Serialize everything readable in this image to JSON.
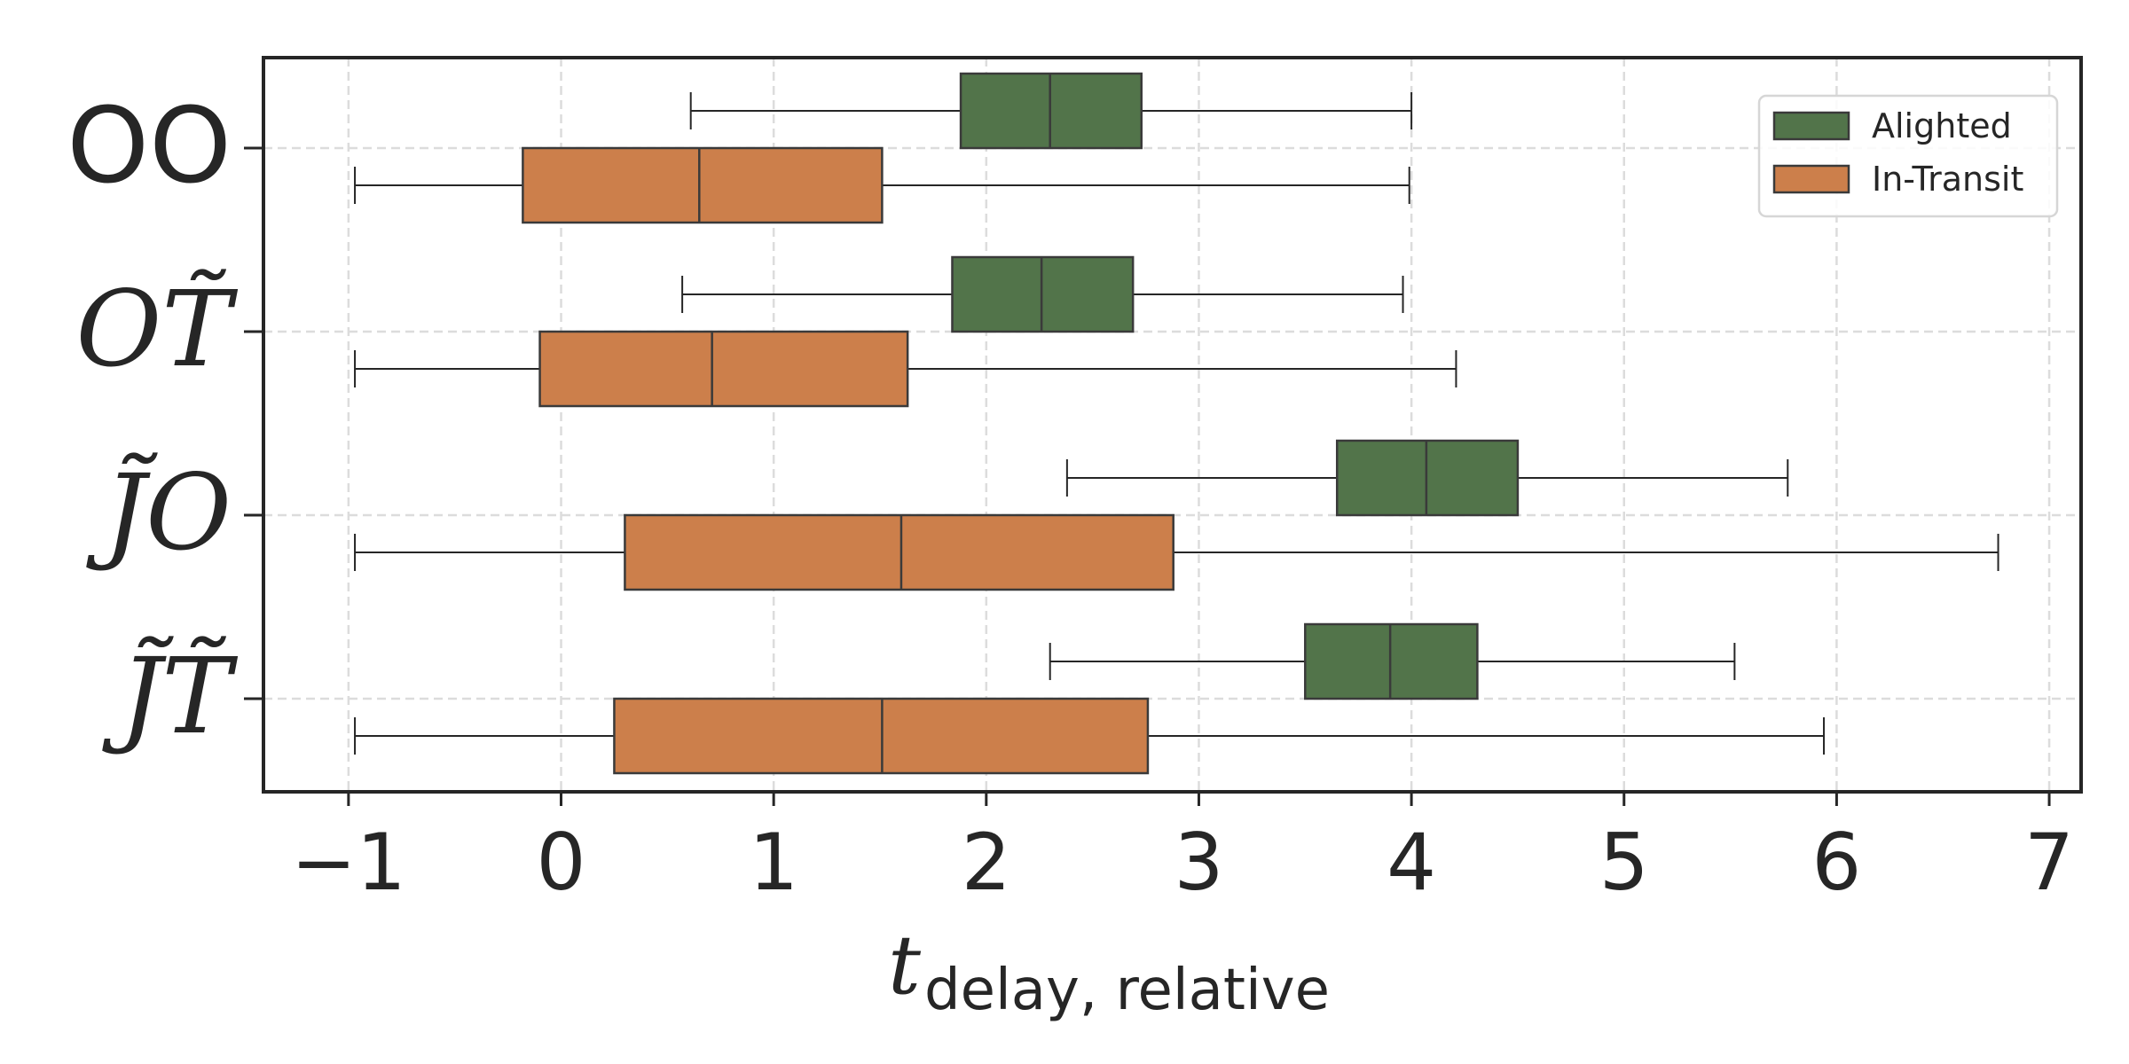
{
  "chart_data": {
    "type": "boxplot-horizontal",
    "xlabel": {
      "main": "t",
      "subscript": "delay, relative"
    },
    "xlim": [
      -1.4,
      7.15
    ],
    "xticks": [
      -1,
      0,
      1,
      2,
      3,
      4,
      5,
      6,
      7
    ],
    "xtick_labels": [
      "−1",
      "0",
      "1",
      "2",
      "3",
      "4",
      "5",
      "6",
      "7"
    ],
    "grid": true,
    "legend_position": "top-right",
    "categories": [
      {
        "label": "OO",
        "style": "upright"
      },
      {
        "label": "OT̃",
        "style": "italic"
      },
      {
        "label": "J̃O",
        "style": "italic"
      },
      {
        "label": "J̃T̃",
        "style": "italic"
      }
    ],
    "series": [
      {
        "name": "Alighted",
        "color": "#52744a",
        "boxes": [
          {
            "whislo": 0.61,
            "q1": 1.88,
            "med": 2.3,
            "q3": 2.73,
            "whishi": 4.0
          },
          {
            "whislo": 0.57,
            "q1": 1.84,
            "med": 2.26,
            "q3": 2.69,
            "whishi": 3.96
          },
          {
            "whislo": 2.38,
            "q1": 3.65,
            "med": 4.07,
            "q3": 4.5,
            "whishi": 5.77
          },
          {
            "whislo": 2.3,
            "q1": 3.5,
            "med": 3.9,
            "q3": 4.31,
            "whishi": 5.52
          }
        ]
      },
      {
        "name": "In-Transit",
        "color": "#cc7f4b",
        "boxes": [
          {
            "whislo": -0.97,
            "q1": -0.18,
            "med": 0.65,
            "q3": 1.51,
            "whishi": 3.99
          },
          {
            "whislo": -0.97,
            "q1": -0.1,
            "med": 0.71,
            "q3": 1.63,
            "whishi": 4.21
          },
          {
            "whislo": -0.97,
            "q1": 0.3,
            "med": 1.6,
            "q3": 2.88,
            "whishi": 6.76
          },
          {
            "whislo": -0.97,
            "q1": 0.25,
            "med": 1.51,
            "q3": 2.76,
            "whishi": 5.94
          }
        ]
      }
    ]
  }
}
